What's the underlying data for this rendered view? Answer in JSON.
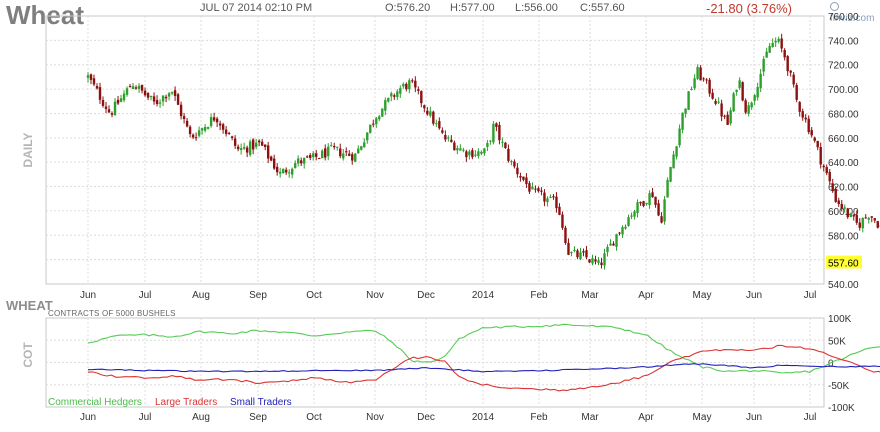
{
  "header": {
    "title": "Wheat",
    "datetime": "JUL 07 2014 02:10 PM",
    "open": "O:576.20",
    "high": "H:577.00",
    "low": "L:556.00",
    "close": "C:557.60",
    "change": "-21.80 (3.76%)",
    "logo": "finviz.com"
  },
  "colors": {
    "up": "#2ca02c",
    "down": "#8b1010",
    "commercial": "#55cc55",
    "large": "#dd3333",
    "small": "#2222bb",
    "price_tag_bg": "#ffff33"
  },
  "chart_data": [
    {
      "type": "candlestick",
      "ylabel": "DAILY",
      "ylim": [
        540,
        760
      ],
      "y_ticks": [
        "760.00",
        "740.00",
        "720.00",
        "700.00",
        "680.00",
        "660.00",
        "640.00",
        "620.00",
        "600.00",
        "580.00",
        "560.00",
        "540.00"
      ],
      "x_tick_labels": [
        "Jun",
        "Jul",
        "Aug",
        "Sep",
        "Oct",
        "Nov",
        "Dec",
        "2014",
        "Feb",
        "Mar",
        "Apr",
        "May",
        "Jun",
        "Jul"
      ],
      "last_price_label": "557.60",
      "grid": true,
      "close_path": [
        {
          "m": 0.0,
          "v": 710
        },
        {
          "m": 0.4,
          "v": 680
        },
        {
          "m": 0.8,
          "v": 705
        },
        {
          "m": 1.2,
          "v": 688
        },
        {
          "m": 1.5,
          "v": 700
        },
        {
          "m": 1.85,
          "v": 660
        },
        {
          "m": 2.3,
          "v": 678
        },
        {
          "m": 2.7,
          "v": 650
        },
        {
          "m": 3.1,
          "v": 655
        },
        {
          "m": 3.45,
          "v": 630
        },
        {
          "m": 3.75,
          "v": 640
        },
        {
          "m": 4.0,
          "v": 642
        },
        {
          "m": 4.4,
          "v": 650
        },
        {
          "m": 4.8,
          "v": 645
        },
        {
          "m": 5.2,
          "v": 680
        },
        {
          "m": 5.6,
          "v": 700
        },
        {
          "m": 5.8,
          "v": 705
        },
        {
          "m": 6.0,
          "v": 690
        },
        {
          "m": 6.4,
          "v": 660
        },
        {
          "m": 6.8,
          "v": 648
        },
        {
          "m": 7.15,
          "v": 648
        },
        {
          "m": 7.3,
          "v": 670
        },
        {
          "m": 7.6,
          "v": 640
        },
        {
          "m": 8.0,
          "v": 615
        },
        {
          "m": 8.45,
          "v": 605
        },
        {
          "m": 8.65,
          "v": 565
        },
        {
          "m": 8.95,
          "v": 562
        },
        {
          "m": 9.2,
          "v": 555
        },
        {
          "m": 9.5,
          "v": 580
        },
        {
          "m": 9.8,
          "v": 600
        },
        {
          "m": 10.15,
          "v": 615
        },
        {
          "m": 10.3,
          "v": 590
        },
        {
          "m": 10.45,
          "v": 630
        },
        {
          "m": 10.7,
          "v": 680
        },
        {
          "m": 10.95,
          "v": 715
        },
        {
          "m": 11.1,
          "v": 705
        },
        {
          "m": 11.3,
          "v": 690
        },
        {
          "m": 11.5,
          "v": 670
        },
        {
          "m": 11.7,
          "v": 710
        },
        {
          "m": 11.85,
          "v": 680
        },
        {
          "m": 12.0,
          "v": 700
        },
        {
          "m": 12.15,
          "v": 720
        },
        {
          "m": 12.25,
          "v": 735
        },
        {
          "m": 12.4,
          "v": 740
        },
        {
          "m": 12.55,
          "v": 725
        },
        {
          "m": 12.75,
          "v": 690
        },
        {
          "m": 13.0,
          "v": 665
        },
        {
          "m": 13.2,
          "v": 640
        },
        {
          "m": 13.45,
          "v": 610
        },
        {
          "m": 13.7,
          "v": 595
        },
        {
          "m": 13.85,
          "v": 588
        },
        {
          "m": 14.05,
          "v": 598
        },
        {
          "m": 14.3,
          "v": 585
        },
        {
          "m": 14.55,
          "v": 575
        },
        {
          "m": 14.7,
          "v": 578
        },
        {
          "m": 14.8,
          "v": 557.6
        }
      ]
    },
    {
      "type": "line",
      "ylabel": "COT",
      "title": "WHEAT",
      "subtitle": "CONTRACTS OF 5000 BUSHELS",
      "ylim": [
        -100000,
        100000
      ],
      "y_ticks": [
        "100K",
        "50K",
        "0",
        "-50K",
        "-100K"
      ],
      "x_tick_labels": [
        "Jun",
        "Jul",
        "Aug",
        "Sep",
        "Oct",
        "Nov",
        "Dec",
        "2014",
        "Feb",
        "Mar",
        "Apr",
        "May",
        "Jun",
        "Jul"
      ],
      "grid": true,
      "legend": "bottom-left",
      "series": [
        {
          "name": "Commercial Hedgers",
          "points": [
            {
              "m": 0.0,
              "v": 45000
            },
            {
              "m": 0.5,
              "v": 60000
            },
            {
              "m": 1.0,
              "v": 62000
            },
            {
              "m": 1.5,
              "v": 58000
            },
            {
              "m": 2.0,
              "v": 70000
            },
            {
              "m": 2.5,
              "v": 65000
            },
            {
              "m": 3.0,
              "v": 72000
            },
            {
              "m": 3.5,
              "v": 68000
            },
            {
              "m": 4.0,
              "v": 60000
            },
            {
              "m": 4.5,
              "v": 68000
            },
            {
              "m": 5.0,
              "v": 72000
            },
            {
              "m": 5.4,
              "v": 40000
            },
            {
              "m": 5.7,
              "v": 5000
            },
            {
              "m": 6.0,
              "v": 0
            },
            {
              "m": 6.3,
              "v": 10000
            },
            {
              "m": 6.6,
              "v": 55000
            },
            {
              "m": 7.0,
              "v": 78000
            },
            {
              "m": 7.5,
              "v": 80000
            },
            {
              "m": 8.0,
              "v": 82000
            },
            {
              "m": 8.5,
              "v": 85000
            },
            {
              "m": 9.0,
              "v": 82000
            },
            {
              "m": 9.5,
              "v": 78000
            },
            {
              "m": 10.0,
              "v": 62000
            },
            {
              "m": 10.5,
              "v": 20000
            },
            {
              "m": 11.0,
              "v": -10000
            },
            {
              "m": 11.5,
              "v": -20000
            },
            {
              "m": 12.0,
              "v": -18000
            },
            {
              "m": 12.5,
              "v": -25000
            },
            {
              "m": 13.0,
              "v": -20000
            },
            {
              "m": 13.5,
              "v": 5000
            },
            {
              "m": 14.0,
              "v": 30000
            },
            {
              "m": 14.5,
              "v": 42000
            },
            {
              "m": 14.8,
              "v": 44000
            }
          ]
        },
        {
          "name": "Large Traders",
          "points": [
            {
              "m": 0.0,
              "v": -20000
            },
            {
              "m": 0.5,
              "v": -32000
            },
            {
              "m": 1.0,
              "v": -35000
            },
            {
              "m": 1.5,
              "v": -30000
            },
            {
              "m": 2.0,
              "v": -40000
            },
            {
              "m": 2.5,
              "v": -38000
            },
            {
              "m": 3.0,
              "v": -45000
            },
            {
              "m": 3.5,
              "v": -42000
            },
            {
              "m": 4.0,
              "v": -35000
            },
            {
              "m": 4.5,
              "v": -45000
            },
            {
              "m": 5.0,
              "v": -40000
            },
            {
              "m": 5.4,
              "v": -10000
            },
            {
              "m": 5.7,
              "v": 10000
            },
            {
              "m": 6.0,
              "v": 12000
            },
            {
              "m": 6.3,
              "v": 5000
            },
            {
              "m": 6.6,
              "v": -35000
            },
            {
              "m": 7.0,
              "v": -50000
            },
            {
              "m": 7.5,
              "v": -58000
            },
            {
              "m": 8.0,
              "v": -60000
            },
            {
              "m": 8.5,
              "v": -62000
            },
            {
              "m": 9.0,
              "v": -55000
            },
            {
              "m": 9.5,
              "v": -45000
            },
            {
              "m": 10.0,
              "v": -30000
            },
            {
              "m": 10.5,
              "v": 5000
            },
            {
              "m": 11.0,
              "v": 25000
            },
            {
              "m": 11.5,
              "v": 30000
            },
            {
              "m": 12.0,
              "v": 28000
            },
            {
              "m": 12.5,
              "v": 38000
            },
            {
              "m": 13.0,
              "v": 30000
            },
            {
              "m": 13.5,
              "v": 10000
            },
            {
              "m": 14.0,
              "v": -15000
            },
            {
              "m": 14.5,
              "v": -30000
            },
            {
              "m": 14.8,
              "v": -32000
            }
          ]
        },
        {
          "name": "Small Traders",
          "points": [
            {
              "m": 0.0,
              "v": -15000
            },
            {
              "m": 1.0,
              "v": -18000
            },
            {
              "m": 2.0,
              "v": -20000
            },
            {
              "m": 3.0,
              "v": -20000
            },
            {
              "m": 4.0,
              "v": -18000
            },
            {
              "m": 5.0,
              "v": -18000
            },
            {
              "m": 6.0,
              "v": -12000
            },
            {
              "m": 7.0,
              "v": -20000
            },
            {
              "m": 8.0,
              "v": -18000
            },
            {
              "m": 9.0,
              "v": -15000
            },
            {
              "m": 10.0,
              "v": -10000
            },
            {
              "m": 10.5,
              "v": -5000
            },
            {
              "m": 11.0,
              "v": -3000
            },
            {
              "m": 11.5,
              "v": -7000
            },
            {
              "m": 12.0,
              "v": -12000
            },
            {
              "m": 12.5,
              "v": -6000
            },
            {
              "m": 13.0,
              "v": -8000
            },
            {
              "m": 13.5,
              "v": -10000
            },
            {
              "m": 14.0,
              "v": -8000
            },
            {
              "m": 14.8,
              "v": -8000
            }
          ]
        }
      ]
    }
  ]
}
